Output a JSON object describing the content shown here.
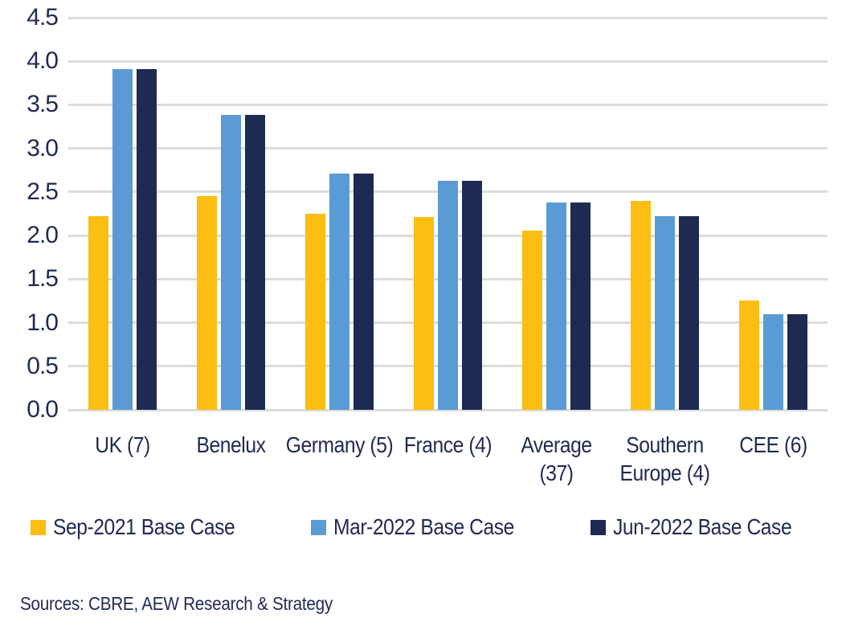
{
  "chart_data": {
    "type": "bar",
    "title": "",
    "categories": [
      "UK (7)",
      "Benelux",
      "Germany (5)",
      "France (4)",
      "Average (37)",
      "Southern Europe (4)",
      "CEE (6)"
    ],
    "series": [
      {
        "name": "Sep-2021 Base Case",
        "color": "#FCBE13",
        "values": [
          2.22,
          2.45,
          2.25,
          2.21,
          2.06,
          2.4,
          1.25
        ]
      },
      {
        "name": "Mar-2022 Base Case",
        "color": "#5B9BD5",
        "values": [
          3.91,
          3.38,
          2.71,
          2.63,
          2.38,
          2.22,
          1.1
        ]
      },
      {
        "name": "Jun-2022 Base Case",
        "color": "#1E2A52",
        "values": [
          3.91,
          3.38,
          2.71,
          2.63,
          2.38,
          2.22,
          1.1
        ]
      }
    ],
    "ylim": [
      0,
      4.5
    ],
    "ytick_step": 0.5,
    "grid": true,
    "legend_position": "bottom"
  },
  "footer": {
    "source": "Sources: CBRE, AEW Research & Strategy"
  },
  "colors": {
    "text": "#1F2A52",
    "gridline": "#DCDCDC",
    "background": "#FFFFFF"
  }
}
